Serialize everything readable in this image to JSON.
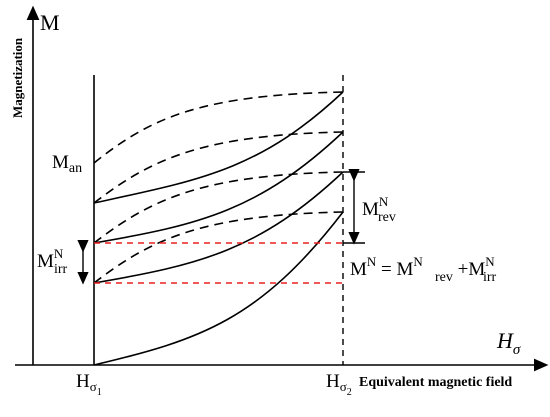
{
  "axes": {
    "y_axis_letter": "M",
    "y_axis_title": "Magnetization",
    "x_axis_symbol": "H",
    "x_axis_symbol_sub": "σ",
    "x_axis_title": "Equivalent magnetic field"
  },
  "tick_labels": {
    "h1_base": "H",
    "h1_sub": "σ",
    "h1_subsub": "1",
    "h2_base": "H",
    "h2_sub": "σ",
    "h2_subsub": "2"
  },
  "labels": {
    "m_an_base": "M",
    "m_an_sub": "an",
    "m_rev_base": "M",
    "m_rev_sup": "N",
    "m_rev_sub": "rev",
    "m_irr_base": "M",
    "m_irr_sup": "N",
    "m_irr_sub": "irr",
    "eq_lhs_base": "M",
    "eq_lhs_sup": "N",
    "eq_equals": " = ",
    "eq_t1_base": "M",
    "eq_t1_sup": "N",
    "eq_t1_sub": "rev",
    "eq_plus": " +",
    "eq_t2_base": "M",
    "eq_t2_sup": "N",
    "eq_t2_sub": "irr"
  },
  "colors": {
    "curves": "#000000",
    "irreversible_levels": "#e8201e"
  }
}
